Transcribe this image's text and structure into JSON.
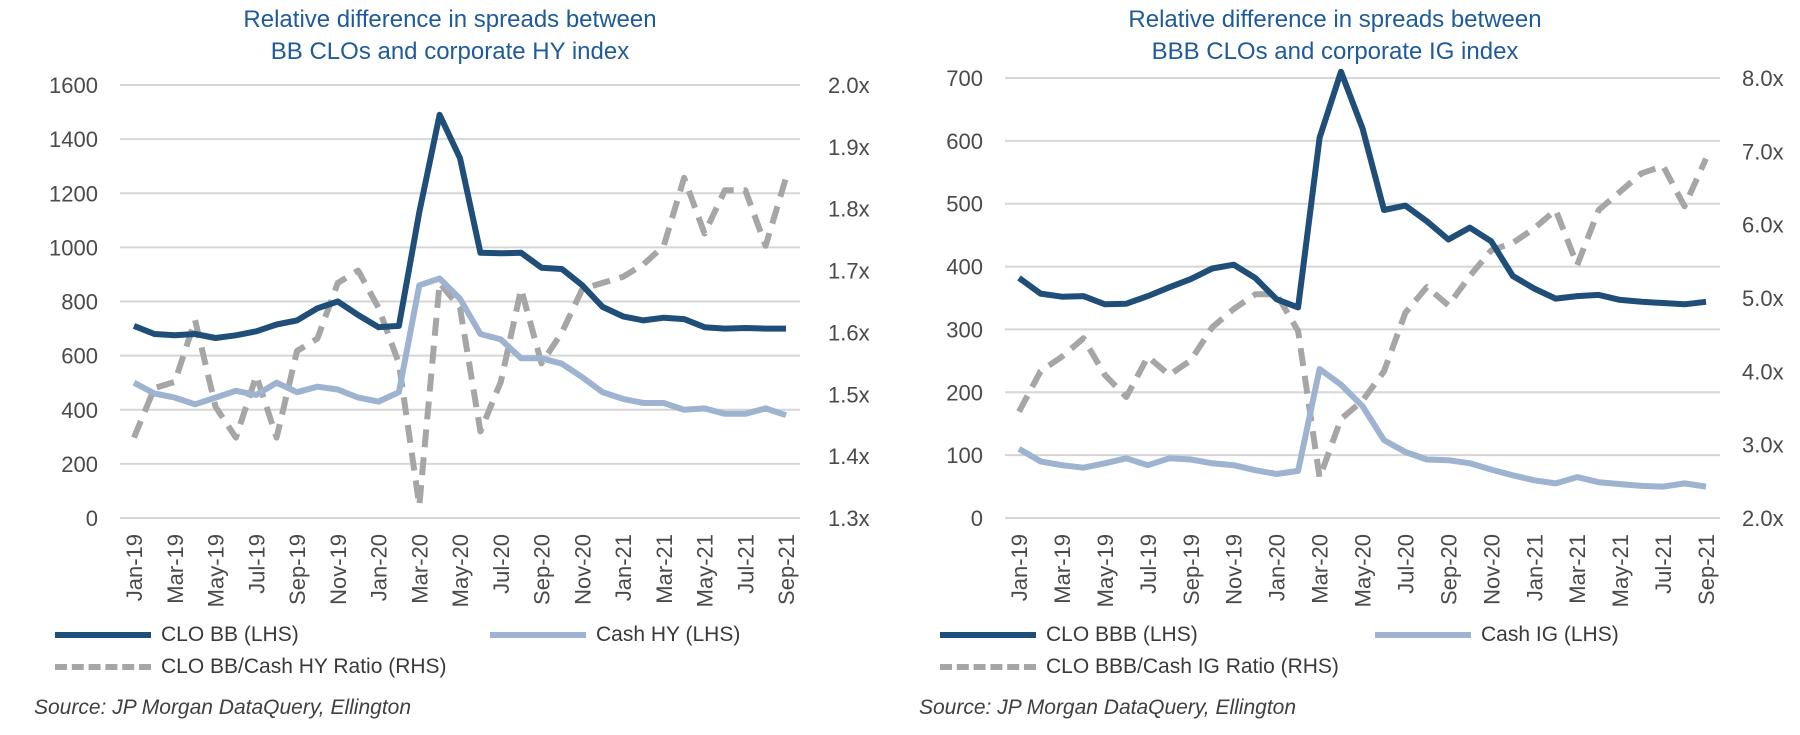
{
  "chart_data": [
    {
      "type": "line",
      "title": "Relative difference in spreads between",
      "subtitle": "BB CLOs and corporate HY index",
      "colors": {
        "clo": "#1f4e79",
        "cash": "#9db3d0",
        "ratio": "#a6a6a6"
      },
      "x": [
        "Jan-19",
        "Feb-19",
        "Mar-19",
        "Apr-19",
        "May-19",
        "Jun-19",
        "Jul-19",
        "Aug-19",
        "Sep-19",
        "Oct-19",
        "Nov-19",
        "Dec-19",
        "Jan-20",
        "Feb-20",
        "Mar-20",
        "Apr-20",
        "May-20",
        "Jun-20",
        "Jul-20",
        "Aug-20",
        "Sep-20",
        "Oct-20",
        "Nov-20",
        "Dec-20",
        "Jan-21",
        "Feb-21",
        "Mar-21",
        "Apr-21",
        "May-21",
        "Jun-21",
        "Jul-21",
        "Aug-21",
        "Sep-21"
      ],
      "x_tick_labels": [
        "Jan-19",
        "Mar-19",
        "May-19",
        "Jul-19",
        "Sep-19",
        "Nov-19",
        "Jan-20",
        "Mar-20",
        "May-20",
        "Jul-20",
        "Sep-20",
        "Nov-20",
        "Jan-21",
        "Mar-21",
        "May-21",
        "Jul-21",
        "Sep-21"
      ],
      "y_left": {
        "min": 0,
        "max": 1600,
        "ticks": [
          "0",
          "200",
          "400",
          "600",
          "800",
          "1000",
          "1200",
          "1400",
          "1600"
        ]
      },
      "y_right": {
        "min": 1.3,
        "max": 2.0,
        "ticks": [
          "1.3x",
          "1.4x",
          "1.5x",
          "1.6x",
          "1.7x",
          "1.8x",
          "1.9x",
          "2.0x"
        ]
      },
      "series": [
        {
          "name": "CLO BB (LHS)",
          "axis": "left",
          "style": "solid-thick",
          "values": [
            710,
            680,
            675,
            680,
            665,
            675,
            690,
            715,
            730,
            775,
            800,
            750,
            705,
            710,
            1130,
            1490,
            1330,
            980,
            978,
            980,
            925,
            920,
            860,
            780,
            745,
            730,
            740,
            735,
            705,
            700,
            702,
            700,
            700
          ]
        },
        {
          "name": "Cash HY (LHS)",
          "axis": "left",
          "style": "solid-light",
          "values": [
            500,
            460,
            445,
            420,
            445,
            470,
            455,
            500,
            465,
            485,
            475,
            445,
            430,
            465,
            860,
            885,
            810,
            680,
            660,
            590,
            590,
            570,
            520,
            465,
            440,
            425,
            425,
            400,
            405,
            385,
            385,
            405,
            380
          ]
        },
        {
          "name": "CLO BB/Cash HY Ratio (RHS)",
          "axis": "right",
          "style": "dashed",
          "values": [
            1.43,
            1.51,
            1.52,
            1.62,
            1.48,
            1.43,
            1.53,
            1.43,
            1.57,
            1.59,
            1.68,
            1.7,
            1.64,
            1.55,
            1.32,
            1.68,
            1.64,
            1.44,
            1.52,
            1.67,
            1.55,
            1.6,
            1.67,
            1.68,
            1.69,
            1.71,
            1.74,
            1.85,
            1.76,
            1.83,
            1.83,
            1.74,
            1.85
          ]
        }
      ],
      "legend_position": "bottom",
      "grid": true,
      "source": "Source: JP Morgan DataQuery, Ellington"
    },
    {
      "type": "line",
      "title": "Relative difference in spreads between",
      "subtitle": "BBB CLOs and corporate IG index",
      "colors": {
        "clo": "#1f4e79",
        "cash": "#9db3d0",
        "ratio": "#a6a6a6"
      },
      "x": [
        "Jan-19",
        "Feb-19",
        "Mar-19",
        "Apr-19",
        "May-19",
        "Jun-19",
        "Jul-19",
        "Aug-19",
        "Sep-19",
        "Oct-19",
        "Nov-19",
        "Dec-19",
        "Jan-20",
        "Feb-20",
        "Mar-20",
        "Apr-20",
        "May-20",
        "Jun-20",
        "Jul-20",
        "Aug-20",
        "Sep-20",
        "Oct-20",
        "Nov-20",
        "Dec-20",
        "Jan-21",
        "Feb-21",
        "Mar-21",
        "Apr-21",
        "May-21",
        "Jun-21",
        "Jul-21",
        "Aug-21",
        "Sep-21"
      ],
      "x_tick_labels": [
        "Jan-19",
        "Mar-19",
        "May-19",
        "Jul-19",
        "Sep-19",
        "Nov-19",
        "Jan-20",
        "Mar-20",
        "May-20",
        "Jul-20",
        "Sep-20",
        "Nov-20",
        "Jan-21",
        "Mar-21",
        "May-21",
        "Jul-21",
        "Sep-21"
      ],
      "y_left": {
        "min": 0,
        "max": 700,
        "ticks": [
          "0",
          "100",
          "200",
          "300",
          "400",
          "500",
          "600",
          "700"
        ]
      },
      "y_right": {
        "min": 2.0,
        "max": 8.0,
        "ticks": [
          "2.0x",
          "3.0x",
          "4.0x",
          "5.0x",
          "6.0x",
          "7.0x",
          "8.0x"
        ]
      },
      "series": [
        {
          "name": "CLO BBB (LHS)",
          "axis": "left",
          "style": "solid-thick",
          "values": [
            382,
            357,
            352,
            353,
            340,
            341,
            353,
            367,
            380,
            397,
            403,
            382,
            348,
            335,
            605,
            710,
            620,
            490,
            497,
            472,
            443,
            462,
            440,
            385,
            365,
            349,
            353,
            355,
            347,
            344,
            342,
            340,
            344
          ]
        },
        {
          "name": "Cash IG (LHS)",
          "axis": "left",
          "style": "solid-light",
          "values": [
            110,
            90,
            84,
            80,
            87,
            95,
            84,
            95,
            93,
            87,
            84,
            76,
            70,
            75,
            237,
            212,
            178,
            124,
            105,
            93,
            92,
            87,
            77,
            68,
            60,
            55,
            65,
            57,
            54,
            51,
            50,
            55,
            50
          ]
        },
        {
          "name": "CLO BBB/Cash IG Ratio (RHS)",
          "axis": "right",
          "style": "dashed",
          "values": [
            3.45,
            4.0,
            4.2,
            4.45,
            3.95,
            3.65,
            4.2,
            3.95,
            4.15,
            4.6,
            4.85,
            5.05,
            5.05,
            4.55,
            2.55,
            3.35,
            3.6,
            4.0,
            4.8,
            5.15,
            4.9,
            5.3,
            5.65,
            5.75,
            5.95,
            6.2,
            5.45,
            6.2,
            6.45,
            6.7,
            6.8,
            6.25,
            6.9
          ]
        }
      ],
      "legend_position": "bottom",
      "grid": true,
      "source": "Source: JP Morgan DataQuery, Ellington"
    }
  ]
}
